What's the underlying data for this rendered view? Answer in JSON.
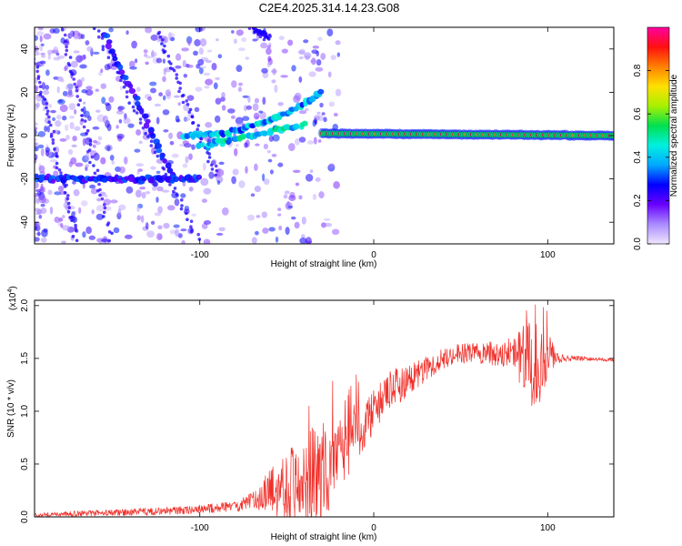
{
  "title": "C2E4.2025.314.14.23.G08",
  "chart_data": [
    {
      "type": "heatmap",
      "name": "spectrogram",
      "xlabel": "Height of straight line (km)",
      "ylabel": "Frequency (Hz)",
      "xlim": [
        -195,
        138
      ],
      "ylim": [
        -50,
        50
      ],
      "xticks": [
        -100,
        0,
        100
      ],
      "yticks": [
        -40,
        -20,
        0,
        20,
        40
      ],
      "colorbar": {
        "label": "Normalized spectral amplitude",
        "range": [
          0.0,
          1.0
        ],
        "ticks": [
          "0.0",
          "0.2",
          "0.4",
          "0.6",
          "0.8"
        ],
        "colors": [
          "#f0e6ff",
          "#a98bff",
          "#6a00ff",
          "#0000ff",
          "#00a8ff",
          "#00f0e0",
          "#00e050",
          "#a8f000",
          "#ffe000",
          "#ff8000",
          "#ff1010",
          "#ff00a0"
        ]
      },
      "features": [
        {
          "label": "main tone",
          "x": [
            -30,
            138
          ],
          "y": [
            1,
            0
          ],
          "amplitude": 0.95
        },
        {
          "label": "upper branch",
          "x": [
            -110,
            -30
          ],
          "y": [
            0,
            20
          ],
          "amplitude": 0.45
        },
        {
          "label": "lower branch",
          "x": [
            -100,
            -40
          ],
          "y": [
            -5,
            5
          ],
          "amplitude": 0.5
        },
        {
          "label": "steep descending line",
          "x": [
            -155,
            -115
          ],
          "y": [
            47,
            -20
          ],
          "amplitude": 0.3
        },
        {
          "label": "side band",
          "x": [
            -195,
            -100
          ],
          "y": [
            -20,
            -20
          ],
          "amplitude": 0.3
        }
      ]
    },
    {
      "type": "line",
      "name": "snr",
      "xlabel": "Height of straight line (km)",
      "ylabel": "SNR (10 * v/v)",
      "scale_label": "(x10",
      "scale_exp": "4",
      "xlim": [
        -195,
        138
      ],
      "ylim": [
        0.0,
        2.05
      ],
      "xticks": [
        -100,
        0,
        100
      ],
      "yticks": [
        "0.0",
        "0.5",
        "1.0",
        "1.5",
        "2.0"
      ],
      "color": "#f0302a",
      "envelope": {
        "x": [
          -195,
          -150,
          -110,
          -80,
          -70,
          -60,
          -50,
          -40,
          -30,
          -20,
          -10,
          0,
          10,
          20,
          30,
          40,
          50,
          60,
          70,
          80,
          85,
          90,
          95,
          100,
          105,
          110,
          120,
          130,
          138
        ],
        "y": [
          0.02,
          0.04,
          0.06,
          0.1,
          0.15,
          0.25,
          0.3,
          0.35,
          0.4,
          0.55,
          0.8,
          1.0,
          1.2,
          1.3,
          1.4,
          1.5,
          1.55,
          1.55,
          1.55,
          1.55,
          1.5,
          1.45,
          1.45,
          1.55,
          1.5,
          1.5,
          1.5,
          1.49,
          1.48
        ],
        "noise": [
          0.02,
          0.03,
          0.04,
          0.05,
          0.08,
          0.2,
          0.35,
          0.45,
          0.5,
          0.35,
          0.3,
          0.2,
          0.2,
          0.15,
          0.12,
          0.1,
          0.1,
          0.1,
          0.12,
          0.15,
          0.3,
          0.4,
          0.4,
          0.25,
          0.06,
          0.03,
          0.02,
          0.015,
          0.015
        ]
      }
    }
  ]
}
